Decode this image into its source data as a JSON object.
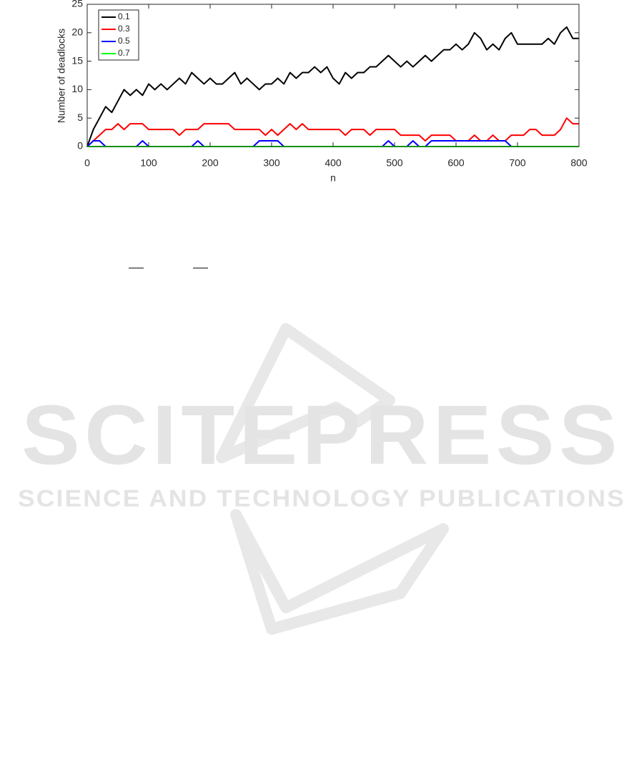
{
  "chart_data": {
    "type": "line",
    "x_label": "n",
    "y_label": "Number of deadlocks",
    "x": [
      0,
      10,
      20,
      30,
      40,
      50,
      60,
      70,
      80,
      90,
      100,
      110,
      120,
      130,
      140,
      150,
      160,
      170,
      180,
      190,
      200,
      210,
      220,
      230,
      240,
      250,
      260,
      270,
      280,
      290,
      300,
      310,
      320,
      330,
      340,
      350,
      360,
      370,
      380,
      390,
      400,
      410,
      420,
      430,
      440,
      450,
      460,
      470,
      480,
      490,
      500,
      510,
      520,
      530,
      540,
      550,
      560,
      570,
      580,
      590,
      600,
      610,
      620,
      630,
      640,
      650,
      660,
      670,
      680,
      690,
      700,
      710,
      720,
      730,
      740,
      750,
      760,
      770,
      780,
      790,
      800
    ],
    "series": [
      {
        "name": "0.1",
        "color": "#000000",
        "values": [
          0,
          3,
          5,
          7,
          6,
          8,
          10,
          9,
          10,
          9,
          11,
          10,
          11,
          10,
          11,
          12,
          11,
          13,
          12,
          11,
          12,
          11,
          11,
          12,
          13,
          11,
          12,
          11,
          10,
          11,
          11,
          12,
          11,
          13,
          12,
          13,
          13,
          14,
          13,
          14,
          12,
          11,
          13,
          12,
          13,
          13,
          14,
          14,
          15,
          16,
          15,
          14,
          15,
          14,
          15,
          16,
          15,
          16,
          17,
          17,
          18,
          17,
          18,
          20,
          19,
          17,
          18,
          17,
          19,
          20,
          18,
          18,
          18,
          18,
          18,
          19,
          18,
          20,
          21,
          19,
          19
        ]
      },
      {
        "name": "0.3",
        "color": "#ff0000",
        "values": [
          0,
          1,
          2,
          3,
          3,
          4,
          3,
          4,
          4,
          4,
          3,
          3,
          3,
          3,
          3,
          2,
          3,
          3,
          3,
          4,
          4,
          4,
          4,
          4,
          3,
          3,
          3,
          3,
          3,
          2,
          3,
          2,
          3,
          4,
          3,
          4,
          3,
          3,
          3,
          3,
          3,
          3,
          2,
          3,
          3,
          3,
          2,
          3,
          3,
          3,
          3,
          2,
          2,
          2,
          2,
          1,
          2,
          2,
          2,
          2,
          1,
          1,
          1,
          2,
          1,
          1,
          2,
          1,
          1,
          2,
          2,
          2,
          3,
          3,
          2,
          2,
          2,
          3,
          5,
          4,
          4
        ]
      },
      {
        "name": "0.5",
        "color": "#0000ff",
        "values": [
          0,
          1,
          1,
          0,
          0,
          0,
          0,
          0,
          0,
          1,
          0,
          0,
          0,
          0,
          0,
          0,
          0,
          0,
          1,
          0,
          0,
          0,
          0,
          0,
          0,
          0,
          0,
          0,
          1,
          1,
          1,
          1,
          0,
          0,
          0,
          0,
          0,
          0,
          0,
          0,
          0,
          0,
          0,
          0,
          0,
          0,
          0,
          0,
          0,
          1,
          0,
          0,
          0,
          1,
          0,
          0,
          1,
          1,
          1,
          1,
          1,
          1,
          1,
          1,
          1,
          1,
          1,
          1,
          1,
          0,
          0,
          0,
          0,
          0,
          0,
          0,
          0,
          0,
          0,
          0,
          0
        ]
      },
      {
        "name": "0.7",
        "color": "#00ff00",
        "values": [
          0,
          0,
          0,
          0,
          0,
          0,
          0,
          0,
          0,
          0,
          0,
          0,
          0,
          0,
          0,
          0,
          0,
          0,
          0,
          0,
          0,
          0,
          0,
          0,
          0,
          0,
          0,
          0,
          0,
          0,
          0,
          0,
          0,
          0,
          0,
          0,
          0,
          0,
          0,
          0,
          0,
          0,
          0,
          0,
          0,
          0,
          0,
          0,
          0,
          0,
          0,
          0,
          0,
          0,
          0,
          0,
          0,
          0,
          0,
          0,
          0,
          0,
          0,
          0,
          0,
          0,
          0,
          0,
          0,
          0,
          0,
          0,
          0,
          0,
          0,
          0,
          0,
          0,
          0,
          0,
          0
        ]
      }
    ],
    "xlim": [
      0,
      800
    ],
    "xticks": [
      0,
      100,
      200,
      300,
      400,
      500,
      600,
      700,
      800
    ],
    "ylim": [
      0,
      25
    ],
    "yticks": [
      0,
      5,
      10,
      15,
      20,
      25
    ],
    "grid": false,
    "legend": "upper left"
  },
  "watermark": {
    "title": "SCITEPRESS",
    "subtitle": "SCIENCE AND TECHNOLOGY PUBLICATIONS"
  }
}
